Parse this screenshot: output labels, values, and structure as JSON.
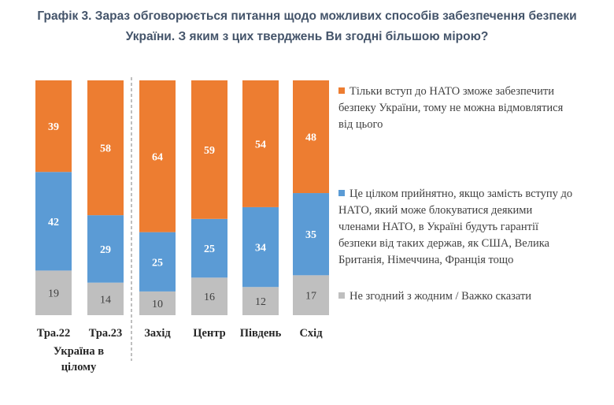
{
  "title_line1": "Графік 3. Зараз обговорюється питання щодо можливих способів забезпечення безпеки",
  "title_line2": "України. З яким з цих тверджень Ви згодні більшою мірою?",
  "group_label_line1": "Україна в",
  "group_label_line2": "цілому",
  "legend": [
    {
      "color": "#ED7D31",
      "text": "Тільки вступ до НАТО зможе забезпечити безпеку України, тому не можна відмовлятися від цього"
    },
    {
      "color": "#5B9BD5",
      "text": "Це цілком прийнятно, якщо замість вступу до НАТО, який може блокуватися деякими членами НАТО, в Україні будуть гарантії безпеки від таких держав, як США, Велика Британія, Німеччина, Франція тощо"
    },
    {
      "color": "#BFBFBF",
      "text": "Не згодний з жодним / Важко сказати"
    }
  ],
  "chart_data": {
    "type": "bar",
    "stacked": true,
    "title": "Графік 3. Зараз обговорюється питання щодо можливих способів забезпечення безпеки України. З яким з цих тверджень Ви згодні більшою мірою?",
    "categories": [
      "Тра.22",
      "Тра.23",
      "Захід",
      "Центр",
      "Південь",
      "Схід"
    ],
    "series": [
      {
        "name": "Не згодний з жодним / Важко сказати",
        "color": "#BFBFBF",
        "values": [
          19,
          14,
          10,
          16,
          12,
          17
        ]
      },
      {
        "name": "Це цілком прийнятно, якщо замість вступу до НАТО...",
        "color": "#5B9BD5",
        "values": [
          42,
          29,
          25,
          25,
          34,
          35
        ]
      },
      {
        "name": "Тільки вступ до НАТО зможе забезпечити безпеку України...",
        "color": "#ED7D31",
        "values": [
          39,
          58,
          64,
          59,
          54,
          48
        ]
      }
    ],
    "ylim": [
      0,
      100
    ],
    "legend_position": "right"
  }
}
